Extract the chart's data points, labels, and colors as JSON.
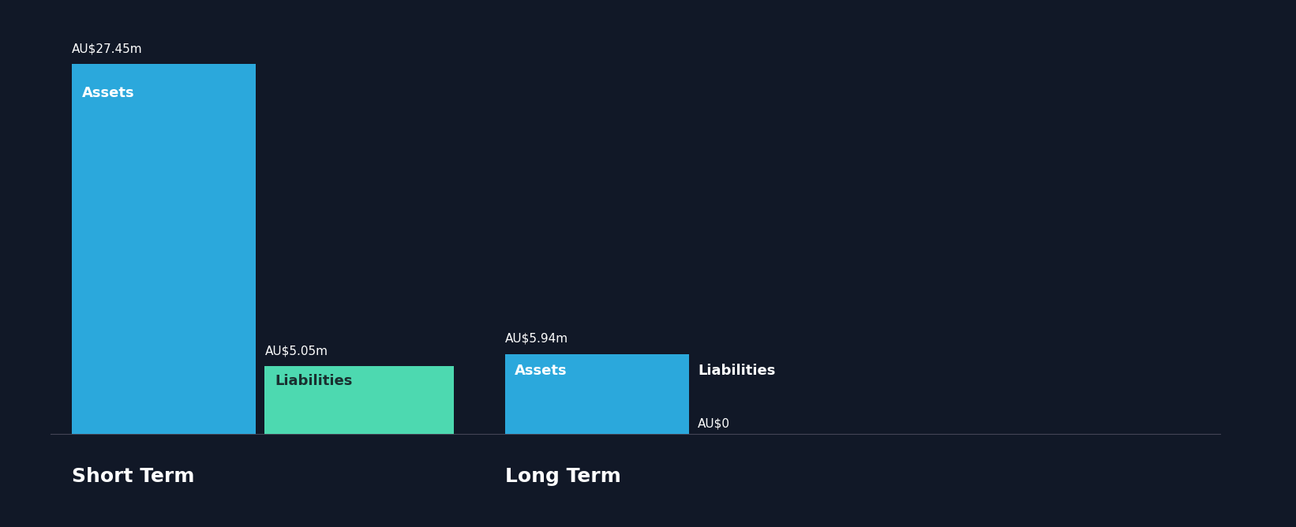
{
  "background_color": "#111827",
  "short_term": {
    "assets_value": 27.45,
    "liabilities_value": 5.05,
    "assets_label": "AU$27.45m",
    "liabilities_label": "AU$5.05m",
    "assets_color": "#2ba8dc",
    "liabilities_color": "#4dd9b0",
    "section_label": "Short Term",
    "bar_label_assets": "Assets",
    "bar_label_liabilities": "Liabilities"
  },
  "long_term": {
    "assets_value": 5.94,
    "liabilities_value": 0.0,
    "assets_label": "AU$5.94m",
    "liabilities_label": "AU$0",
    "assets_color": "#2ba8dc",
    "liabilities_color": "#4dd9b0",
    "section_label": "Long Term",
    "bar_label_assets": "Assets",
    "bar_label_liabilities": "Liabilities"
  },
  "text_color": "#ffffff",
  "liab_text_color_st": "#0d2a28",
  "liab_text_color_lt": "#ffffff"
}
